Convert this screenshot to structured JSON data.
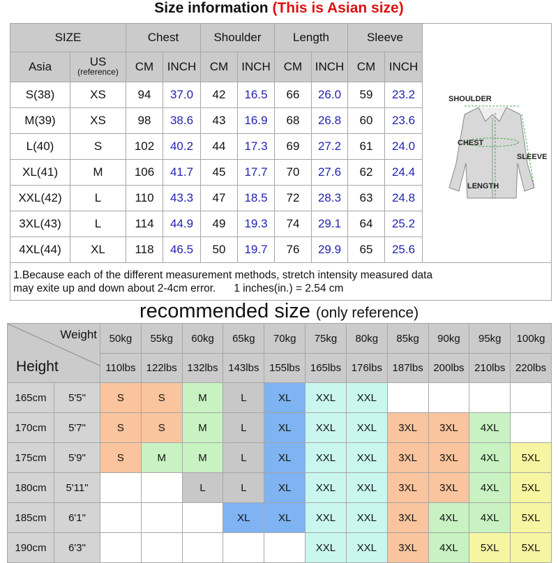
{
  "header": {
    "title": "Size information",
    "subtitle": "(This is Asian size)"
  },
  "size_table": {
    "group_headers": [
      "SIZE",
      "Chest",
      "Shoulder",
      "Length",
      "Sleeve"
    ],
    "sub_headers": [
      "Asia",
      "US",
      "CM",
      "INCH",
      "CM",
      "INCH",
      "CM",
      "INCH",
      "CM",
      "INCH"
    ],
    "us_note": "(reference)",
    "rows": [
      [
        "S(38)",
        "XS",
        "94",
        "37.0",
        "42",
        "16.5",
        "66",
        "26.0",
        "59",
        "23.2"
      ],
      [
        "M(39)",
        "XS",
        "98",
        "38.6",
        "43",
        "16.9",
        "68",
        "26.8",
        "60",
        "23.6"
      ],
      [
        "L(40)",
        "S",
        "102",
        "40.2",
        "44",
        "17.3",
        "69",
        "27.2",
        "61",
        "24.0"
      ],
      [
        "XL(41)",
        "M",
        "106",
        "41.7",
        "45",
        "17.7",
        "70",
        "27.6",
        "62",
        "24.4"
      ],
      [
        "XXL(42)",
        "L",
        "110",
        "43.3",
        "47",
        "18.5",
        "72",
        "28.3",
        "63",
        "24.8"
      ],
      [
        "3XL(43)",
        "L",
        "114",
        "44.9",
        "49",
        "19.3",
        "74",
        "29.1",
        "64",
        "25.2"
      ],
      [
        "4XL(44)",
        "XL",
        "118",
        "46.5",
        "50",
        "19.7",
        "76",
        "29.9",
        "65",
        "25.6"
      ]
    ]
  },
  "diagram": {
    "shoulder": "SHOULDER",
    "chest": "CHEST",
    "sleeve": "SLEEVE",
    "length": "LENGTH"
  },
  "note": [
    "1.Because each of the different measurement methods, stretch intensity measured data",
    "may exite up and down about 2-4cm error.      1 inches(in.) = 2.54 cm"
  ],
  "recommend": {
    "title": "recommended size",
    "subtitle": "(only reference)",
    "weight_label": "Weight",
    "height_label": "Height",
    "kg": [
      "50kg",
      "55kg",
      "60kg",
      "65kg",
      "70kg",
      "75kg",
      "80kg",
      "85kg",
      "90kg",
      "95kg",
      "100kg"
    ],
    "lbs": [
      "110lbs",
      "122lbs",
      "132lbs",
      "143lbs",
      "155lbs",
      "165lbs",
      "176lbs",
      "187lbs",
      "200lbs",
      "210lbs",
      "220lbs"
    ],
    "rows": [
      {
        "cm": "165cm",
        "inch": "5'5\"",
        "sizes": [
          "S",
          "S",
          "M",
          "L",
          "XL",
          "XXL",
          "XXL",
          null,
          null,
          null,
          null
        ],
        "colors": [
          "#f9c49e",
          "#f9c49e",
          "#c8f2c2",
          "#c8c8c8",
          "#7fb3f2",
          "#c9f7f0",
          "#c9f7f0",
          null,
          null,
          null,
          null
        ]
      },
      {
        "cm": "170cm",
        "inch": "5'7\"",
        "sizes": [
          "S",
          "S",
          "M",
          "L",
          "XL",
          "XXL",
          "XXL",
          "3XL",
          "3XL",
          "4XL",
          null
        ],
        "colors": [
          "#f9c49e",
          "#f9c49e",
          "#c8f2c2",
          "#c8c8c8",
          "#7fb3f2",
          "#c9f7f0",
          "#c9f7f0",
          "#f9c49e",
          "#f9c49e",
          "#c8f2c2",
          null
        ]
      },
      {
        "cm": "175cm",
        "inch": "5'9\"",
        "sizes": [
          "S",
          "M",
          "M",
          "L",
          "XL",
          "XXL",
          "XXL",
          "3XL",
          "3XL",
          "4XL",
          "5XL"
        ],
        "colors": [
          "#f9c49e",
          "#c8f2c2",
          "#c8f2c2",
          "#c8c8c8",
          "#7fb3f2",
          "#c9f7f0",
          "#c9f7f0",
          "#f9c49e",
          "#f9c49e",
          "#c8f2c2",
          "#f6f6a2"
        ]
      },
      {
        "cm": "180cm",
        "inch": "5'11\"",
        "sizes": [
          null,
          null,
          "L",
          "L",
          "XL",
          "XXL",
          "XXL",
          "3XL",
          "3XL",
          "4XL",
          "5XL"
        ],
        "colors": [
          null,
          null,
          "#c8c8c8",
          "#c8c8c8",
          "#7fb3f2",
          "#c9f7f0",
          "#c9f7f0",
          "#f9c49e",
          "#f9c49e",
          "#c8f2c2",
          "#f6f6a2"
        ]
      },
      {
        "cm": "185cm",
        "inch": "6'1\"",
        "sizes": [
          null,
          null,
          null,
          "XL",
          "XL",
          "XXL",
          "XXL",
          "3XL",
          "4XL",
          "4XL",
          "5XL"
        ],
        "colors": [
          null,
          null,
          null,
          "#7fb3f2",
          "#7fb3f2",
          "#c9f7f0",
          "#c9f7f0",
          "#f9c49e",
          "#c8f2c2",
          "#c8f2c2",
          "#f6f6a2"
        ]
      },
      {
        "cm": "190cm",
        "inch": "6'3\"",
        "sizes": [
          null,
          null,
          null,
          null,
          null,
          "XXL",
          "XXL",
          "3XL",
          "4XL",
          "5XL",
          "5XL"
        ],
        "colors": [
          null,
          null,
          null,
          null,
          null,
          "#c9f7f0",
          "#c9f7f0",
          "#f9c49e",
          "#c8f2c2",
          "#f6f6a2",
          "#f6f6a2"
        ]
      }
    ]
  }
}
